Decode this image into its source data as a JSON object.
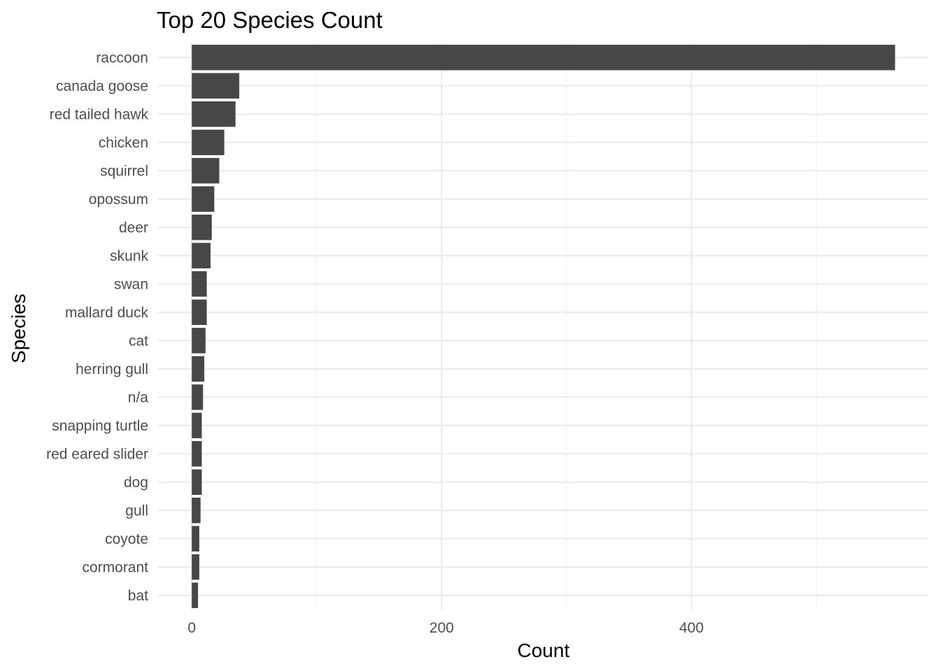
{
  "chart_data": {
    "type": "bar",
    "orientation": "horizontal",
    "title": "Top 20 Species Count",
    "xlabel": "Count",
    "ylabel": "Species",
    "categories": [
      "raccoon",
      "canada goose",
      "red tailed hawk",
      "chicken",
      "squirrel",
      "opossum",
      "deer",
      "skunk",
      "swan",
      "mallard duck",
      "cat",
      "herring gull",
      "n/a",
      "snapping turtle",
      "red eared slider",
      "dog",
      "gull",
      "coyote",
      "cormorant",
      "bat"
    ],
    "values": [
      563,
      38,
      35,
      26,
      22,
      18,
      16,
      15,
      12,
      12,
      11,
      10,
      9,
      8,
      8,
      8,
      7,
      6,
      6,
      5
    ],
    "xlim": [
      -27,
      590
    ],
    "x_ticks": [
      0,
      200,
      400
    ],
    "x_tick_labels": [
      "0",
      "200",
      "400"
    ],
    "x_minor_ticks": [
      100,
      300,
      500
    ],
    "grid": true,
    "legend": "none",
    "colors": {
      "bar": "#474747",
      "grid_major": "#ebebeb",
      "grid_minor": "#f3f3f3",
      "tick_text": "#4d4d4d",
      "title_text": "#000000"
    }
  }
}
